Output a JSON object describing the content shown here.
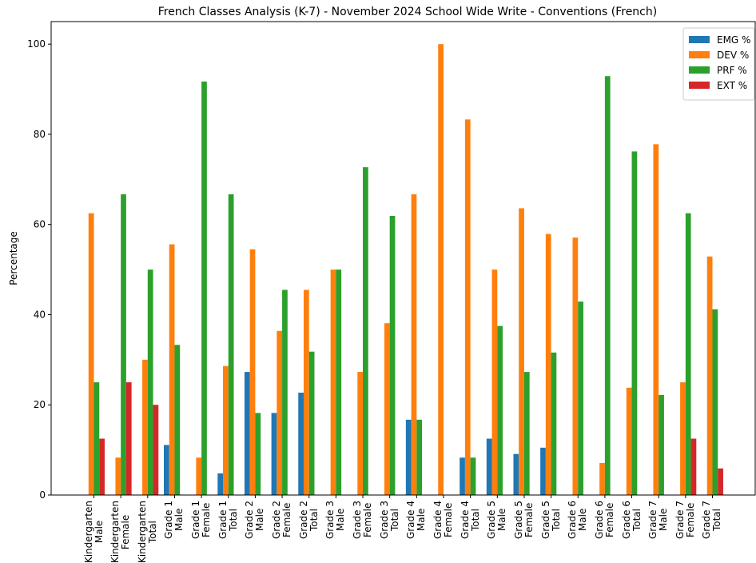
{
  "chart_data": {
    "type": "bar",
    "title": "French Classes Analysis (K-7) - November 2024 School Wide Write - Conventions (French)",
    "ylabel": "Percentage",
    "categories": [
      "Kindergarten\nMale",
      "Kindergarten\nFemale",
      "Kindergarten\nTotal",
      "Grade 1\nMale",
      "Grade 1\nFemale",
      "Grade 1\nTotal",
      "Grade 2\nMale",
      "Grade 2\nFemale",
      "Grade 2\nTotal",
      "Grade 3\nMale",
      "Grade 3\nFemale",
      "Grade 3\nTotal",
      "Grade 4\nMale",
      "Grade 4\nFemale",
      "Grade 4\nTotal",
      "Grade 5\nMale",
      "Grade 5\nFemale",
      "Grade 5\nTotal",
      "Grade 6\nMale",
      "Grade 6\nFemale",
      "Grade 6\nTotal",
      "Grade 7\nMale",
      "Grade 7\nFemale",
      "Grade 7\nTotal"
    ],
    "series": [
      {
        "name": "EMG %",
        "color": "#1f77b4",
        "values": [
          0,
          0,
          0,
          11.1,
          0,
          4.8,
          27.3,
          18.2,
          22.7,
          0,
          0,
          0,
          16.7,
          0,
          8.3,
          12.5,
          9.1,
          10.5,
          0,
          0,
          0,
          0,
          0,
          0
        ]
      },
      {
        "name": "DEV %",
        "color": "#ff7f0e",
        "values": [
          62.5,
          8.3,
          30,
          55.6,
          8.3,
          28.6,
          54.5,
          36.4,
          45.5,
          50,
          27.3,
          38.1,
          66.7,
          100,
          83.3,
          50,
          63.6,
          57.9,
          57.1,
          7.1,
          23.8,
          77.8,
          25,
          52.9
        ]
      },
      {
        "name": "PRF %",
        "color": "#2ca02c",
        "values": [
          25,
          66.7,
          50,
          33.3,
          91.7,
          66.7,
          18.2,
          45.5,
          31.8,
          50,
          72.7,
          61.9,
          16.7,
          0,
          8.3,
          37.5,
          27.3,
          31.6,
          42.9,
          92.9,
          76.2,
          22.2,
          62.5,
          41.2
        ]
      },
      {
        "name": "EXT %",
        "color": "#d62728",
        "values": [
          12.5,
          25,
          20,
          0,
          0,
          0,
          0,
          0,
          0,
          0,
          0,
          0,
          0,
          0,
          0,
          0,
          0,
          0,
          0,
          0,
          0,
          0,
          12.5,
          5.9
        ]
      }
    ],
    "ylim": [
      0,
      105
    ],
    "yticks": [
      0,
      20,
      40,
      60,
      80,
      100
    ],
    "legend": "upper right",
    "grid": false
  }
}
